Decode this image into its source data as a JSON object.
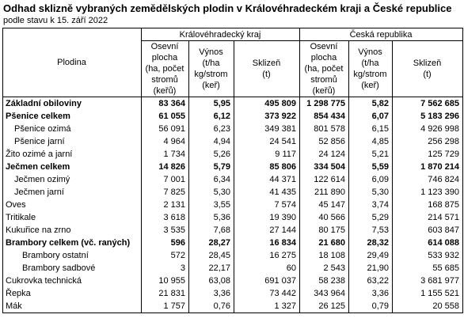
{
  "header": {
    "title": "Odhad sklizně vybraných zemědělských plodin v Královéhradeckém kraji a České republice",
    "subtitle": "podle stavu k 15. září 2022"
  },
  "table": {
    "crop_header": "Plodina",
    "groups": [
      "Královéhradecký kraj",
      "Česká republika"
    ],
    "columns": [
      "Osevní\nplocha\n(ha, počet\nstromů (keřů)",
      "Výnos\n(t/ha\nkg/strom\n(keř)",
      "Sklizeň\n(t)",
      "Osevní\nplocha\n(ha, počet\nstromů (keřů)",
      "Výnos\n(t/ha\nkg/strom\n(keř)",
      "Sklizeň\n(t)"
    ],
    "rows": [
      [
        "Základní obiloviny",
        "83 364",
        "5,95",
        "495 809",
        "1 298 775",
        "5,82",
        "7 562 685"
      ],
      [
        "Pšenice celkem",
        "61 055",
        "6,12",
        "373 922",
        "854 434",
        "6,07",
        "5 183 296"
      ],
      [
        "Pšenice ozimá",
        "56 091",
        "6,23",
        "349 381",
        "801 578",
        "6,15",
        "4 926 998"
      ],
      [
        "Pšenice jarní",
        "4 964",
        "4,94",
        "24 541",
        "52 856",
        "4,85",
        "256 298"
      ],
      [
        "Žito ozimé a jarní",
        "1 734",
        "5,26",
        "9 117",
        "24 124",
        "5,21",
        "125 729"
      ],
      [
        "Ječmen celkem",
        "14 826",
        "5,79",
        "85 806",
        "334 504",
        "5,59",
        "1 870 214"
      ],
      [
        "Ječmen ozimý",
        "7 001",
        "6,34",
        "44 371",
        "122 614",
        "6,09",
        "746 824"
      ],
      [
        "Ječmen jarní",
        "7 825",
        "5,30",
        "41 435",
        "211 890",
        "5,30",
        "1 123 390"
      ],
      [
        "Oves",
        "2 131",
        "3,55",
        "7 574",
        "45 147",
        "3,74",
        "168 875"
      ],
      [
        "Tritikale",
        "3 618",
        "5,36",
        "19 390",
        "40 566",
        "5,29",
        "214 571"
      ],
      [
        "Kukuřice na zrno",
        "3 535",
        "7,68",
        "27 144",
        "80 175",
        "7,53",
        "603 847"
      ],
      [
        "Brambory celkem (vč. raných)",
        "596",
        "28,27",
        "16 834",
        "21 680",
        "28,32",
        "614 088"
      ],
      [
        "Brambory ostatní",
        "572",
        "28,45",
        "16 275",
        "18 108",
        "29,49",
        "533 932"
      ],
      [
        "Brambory sadbové",
        "3",
        "22,17",
        "60",
        "2 543",
        "21,90",
        "55 685"
      ],
      [
        "Cukrovka technická",
        "10 955",
        "63,08",
        "691 037",
        "58 238",
        "63,22",
        "3 681 977"
      ],
      [
        "Řepka",
        "21 831",
        "3,36",
        "73 442",
        "343 964",
        "3,36",
        "1 155 521"
      ],
      [
        "Mák",
        "1 757",
        "0,76",
        "1 327",
        "26 125",
        "0,79",
        "20 558"
      ]
    ]
  }
}
